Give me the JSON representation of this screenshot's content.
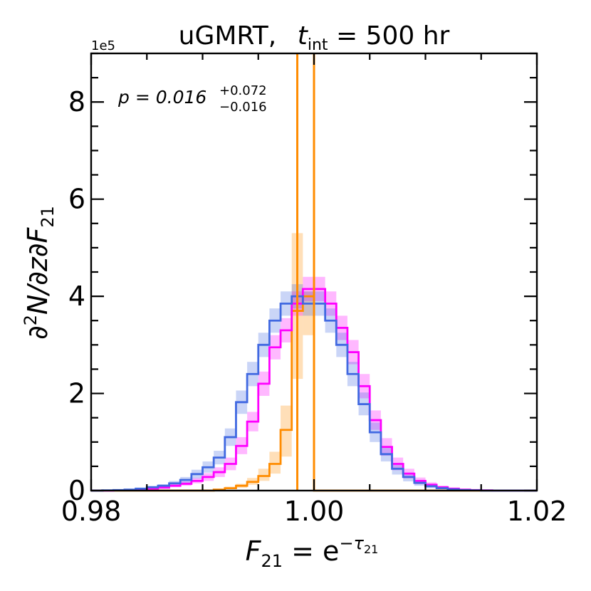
{
  "chart_data": {
    "type": "step-histogram",
    "title_prefix": "uGMRT,",
    "title_t": "t",
    "title_sub": "int",
    "title_value": " = 500 hr",
    "offset_label": "1e5",
    "annotation_main": "p = 0.016",
    "annotation_sup": "+0.072",
    "annotation_sub": "−0.016",
    "xlabel_main": "F",
    "xlabel_sub": "21",
    "xlabel_eq": " = e",
    "xlabel_exp": "−τ",
    "xlabel_exp_sub": "21",
    "ylabel_main": "∂",
    "ylabel_sup": "2",
    "ylabel_rest": "N/∂z∂F",
    "ylabel_sub": "21",
    "xlim": [
      0.98,
      1.02
    ],
    "ylim": [
      0,
      9
    ],
    "x_major_ticks": [
      0.98,
      1.0,
      1.02
    ],
    "x_tick_labels": [
      "0.98",
      "1.00",
      "1.02"
    ],
    "y_major_ticks": [
      0,
      2,
      4,
      6,
      8
    ],
    "y_tick_labels": [
      "0",
      "2",
      "4",
      "6",
      "8"
    ],
    "bin_edges": [
      0.98,
      0.981,
      0.982,
      0.983,
      0.984,
      0.985,
      0.986,
      0.987,
      0.988,
      0.989,
      0.99,
      0.991,
      0.992,
      0.993,
      0.994,
      0.995,
      0.996,
      0.997,
      0.998,
      0.999,
      1.0,
      1.001,
      1.002,
      1.003,
      1.004,
      1.005,
      1.006,
      1.007,
      1.008,
      1.009,
      1.01,
      1.011,
      1.012,
      1.013,
      1.014,
      1.015,
      1.016,
      1.017,
      1.018,
      1.019,
      1.02
    ],
    "vertical_lines": [
      {
        "x": 0.9985,
        "color": "#ff8c00"
      },
      {
        "x": 1.0,
        "color": "#ff8c00"
      }
    ],
    "series": [
      {
        "name": "orange",
        "color": "#ff8c00",
        "values": [
          0,
          0,
          0,
          0,
          0,
          0,
          0,
          0,
          0,
          0,
          0,
          0.02,
          0.05,
          0.1,
          0.18,
          0.3,
          0.55,
          1.25,
          3.7,
          4.0,
          0,
          0,
          0,
          0,
          0,
          0,
          0,
          0,
          0,
          0,
          0,
          0,
          0,
          0,
          0,
          0,
          0,
          0,
          0,
          0
        ],
        "lower": [
          0,
          0,
          0,
          0,
          0,
          0,
          0,
          0,
          0,
          0,
          0,
          0.01,
          0.03,
          0.06,
          0.12,
          0.2,
          0.35,
          0.7,
          2.3,
          3.2,
          0,
          0,
          0,
          0,
          0,
          0,
          0,
          0,
          0,
          0,
          0,
          0,
          0,
          0,
          0,
          0,
          0,
          0,
          0,
          0
        ],
        "upper": [
          0,
          0,
          0,
          0,
          0,
          0,
          0,
          0,
          0,
          0,
          0,
          0.04,
          0.08,
          0.14,
          0.26,
          0.45,
          0.8,
          1.75,
          5.3,
          4.1,
          0,
          0,
          0,
          0,
          0,
          0,
          0,
          0,
          0,
          0,
          0,
          0,
          0,
          0,
          0,
          0,
          0,
          0,
          0,
          0
        ]
      },
      {
        "name": "magenta",
        "color": "#ff00ff",
        "values": [
          0,
          0,
          0.005,
          0.01,
          0.02,
          0.04,
          0.06,
          0.1,
          0.14,
          0.2,
          0.28,
          0.38,
          0.55,
          0.92,
          1.42,
          2.2,
          2.95,
          3.3,
          3.85,
          4.15,
          4.15,
          3.85,
          3.35,
          2.85,
          2.15,
          1.45,
          0.9,
          0.55,
          0.35,
          0.2,
          0.12,
          0.07,
          0.04,
          0.02,
          0.01,
          0.005,
          0,
          0,
          0,
          0
        ],
        "lower": [
          0,
          0,
          0.002,
          0.006,
          0.012,
          0.025,
          0.04,
          0.07,
          0.1,
          0.15,
          0.2,
          0.28,
          0.42,
          0.75,
          1.22,
          1.95,
          2.7,
          3.05,
          3.6,
          3.9,
          3.9,
          3.6,
          3.1,
          2.6,
          1.9,
          1.25,
          0.72,
          0.42,
          0.25,
          0.13,
          0.07,
          0.04,
          0.02,
          0.01,
          0.005,
          0.002,
          0,
          0,
          0,
          0
        ],
        "upper": [
          0,
          0,
          0.01,
          0.015,
          0.03,
          0.055,
          0.085,
          0.13,
          0.19,
          0.26,
          0.36,
          0.48,
          0.68,
          1.1,
          1.62,
          2.45,
          3.2,
          3.55,
          4.1,
          4.4,
          4.4,
          4.1,
          3.6,
          3.1,
          2.4,
          1.65,
          1.08,
          0.68,
          0.45,
          0.27,
          0.17,
          0.1,
          0.06,
          0.03,
          0.015,
          0.01,
          0,
          0,
          0,
          0
        ]
      },
      {
        "name": "blue",
        "color": "#4169e1",
        "values": [
          0,
          0.005,
          0.01,
          0.02,
          0.04,
          0.07,
          0.1,
          0.15,
          0.22,
          0.34,
          0.48,
          0.68,
          1.1,
          1.82,
          2.4,
          3.0,
          3.5,
          3.85,
          4.0,
          3.85,
          3.85,
          3.5,
          3.0,
          2.4,
          1.78,
          1.2,
          0.75,
          0.45,
          0.28,
          0.16,
          0.09,
          0.05,
          0.025,
          0.01,
          0.005,
          0,
          0,
          0,
          0,
          0
        ],
        "lower": [
          0,
          0.002,
          0.005,
          0.01,
          0.025,
          0.045,
          0.07,
          0.1,
          0.16,
          0.25,
          0.37,
          0.54,
          0.92,
          1.58,
          2.15,
          2.75,
          3.25,
          3.6,
          3.75,
          3.6,
          3.6,
          3.25,
          2.75,
          2.15,
          1.55,
          1.0,
          0.6,
          0.33,
          0.19,
          0.1,
          0.05,
          0.03,
          0.012,
          0.005,
          0.002,
          0,
          0,
          0,
          0,
          0
        ],
        "upper": [
          0,
          0.01,
          0.015,
          0.03,
          0.055,
          0.095,
          0.13,
          0.2,
          0.28,
          0.43,
          0.6,
          0.82,
          1.28,
          2.06,
          2.65,
          3.25,
          3.75,
          4.1,
          4.25,
          4.1,
          4.1,
          3.75,
          3.25,
          2.65,
          2.02,
          1.4,
          0.9,
          0.57,
          0.37,
          0.22,
          0.13,
          0.07,
          0.04,
          0.02,
          0.01,
          0,
          0,
          0,
          0,
          0
        ]
      }
    ]
  }
}
